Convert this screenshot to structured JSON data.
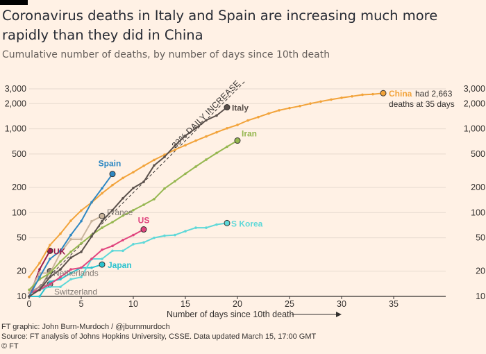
{
  "header": {
    "title": "Coronavirus deaths in Italy and Spain are increasing much more rapidly than they did in China",
    "subtitle": "Cumulative number of deaths, by number of days since 10th death"
  },
  "footer": {
    "credit": "FT graphic: John Burn-Murdoch / @jburnmurdoch",
    "source": "Source: FT analysis of Johns Hopkins University, CSSE. Data updated March 15, 17:00 GMT",
    "copyright": "© FT"
  },
  "chart_data": {
    "type": "line",
    "title": "Coronavirus deaths in Italy and Spain are increasing much more rapidly than they did in China",
    "subtitle": "Cumulative number of deaths, by number of days since 10th death",
    "xlabel": "Number of days since 10th death",
    "ylabel": "",
    "yscale": "log",
    "xlim": [
      0,
      40
    ],
    "ylim": [
      10,
      3000
    ],
    "xticks": [
      0,
      5,
      10,
      15,
      20,
      25,
      30,
      35
    ],
    "yticks": [
      10,
      20,
      50,
      100,
      200,
      500,
      1000,
      2000,
      3000
    ],
    "ytick_labels": [
      "10",
      "20",
      "50",
      "100",
      "200",
      "500",
      "1,000",
      "2,000",
      "3,000"
    ],
    "reference_line": {
      "label": "33% DAILY INCREASE",
      "daily_growth": 1.33,
      "start": [
        0,
        10
      ],
      "end_x": 20.7
    },
    "series": [
      {
        "name": "China",
        "label": "China",
        "color": "#f2a33a",
        "values": [
          17,
          25,
          41,
          56,
          80,
          106,
          132,
          170,
          213,
          259,
          304,
          361,
          425,
          490,
          563,
          637,
          722,
          811,
          908,
          1016,
          1113,
          1259,
          1380,
          1523,
          1665,
          1770,
          1868,
          2004,
          2118,
          2236,
          2345,
          2442,
          2553,
          2592,
          2663
        ],
        "annotation": [
          "had 2,663",
          "deaths at 35 days"
        ]
      },
      {
        "name": "Italy",
        "label": "Italy",
        "color": "#5a504b",
        "values": [
          10,
          12,
          17,
          21,
          29,
          34,
          52,
          79,
          107,
          148,
          197,
          233,
          366,
          463,
          631,
          827,
          1016,
          1266,
          1441,
          1809
        ]
      },
      {
        "name": "Iran",
        "label": "Iran",
        "color": "#96b750",
        "values": [
          12,
          16,
          19,
          26,
          34,
          43,
          54,
          66,
          77,
          92,
          107,
          124,
          145,
          194,
          237,
          291,
          354,
          429,
          514,
          611,
          724
        ]
      },
      {
        "name": "Spain",
        "label": "Spain",
        "color": "#2e88c3",
        "values": [
          10,
          17,
          28,
          35,
          54,
          79,
          133,
          195,
          289
        ]
      },
      {
        "name": "France",
        "label": "France",
        "color": "#c9b49c",
        "values": [
          11,
          19,
          19,
          33,
          48,
          48,
          79,
          91
        ]
      },
      {
        "name": "US",
        "label": "US",
        "color": "#e0447e",
        "values": [
          11,
          12,
          14,
          17,
          21,
          22,
          28,
          36,
          40,
          47,
          54,
          63
        ]
      },
      {
        "name": "S Korea",
        "label": "S Korea",
        "color": "#5ed8d8",
        "values": [
          11,
          12,
          13,
          13,
          16,
          17,
          28,
          28,
          35,
          35,
          42,
          44,
          50,
          53,
          54,
          60,
          66,
          66,
          72,
          75
        ]
      },
      {
        "name": "UK",
        "label": "UK",
        "color": "#9a1e4e",
        "values": [
          10,
          21,
          35
        ]
      },
      {
        "name": "Japan",
        "label": "Japan",
        "color": "#2bc3cf",
        "values": [
          10,
          10,
          15,
          16,
          19,
          22,
          22,
          24
        ]
      },
      {
        "name": "Netherlands",
        "label": "Netherlands",
        "color": "#8d8076",
        "values": [
          10,
          12,
          20
        ]
      },
      {
        "name": "Switzerland",
        "label": "Switzerland",
        "color": "#b18a8a",
        "values": [
          11,
          13,
          14
        ]
      }
    ]
  }
}
